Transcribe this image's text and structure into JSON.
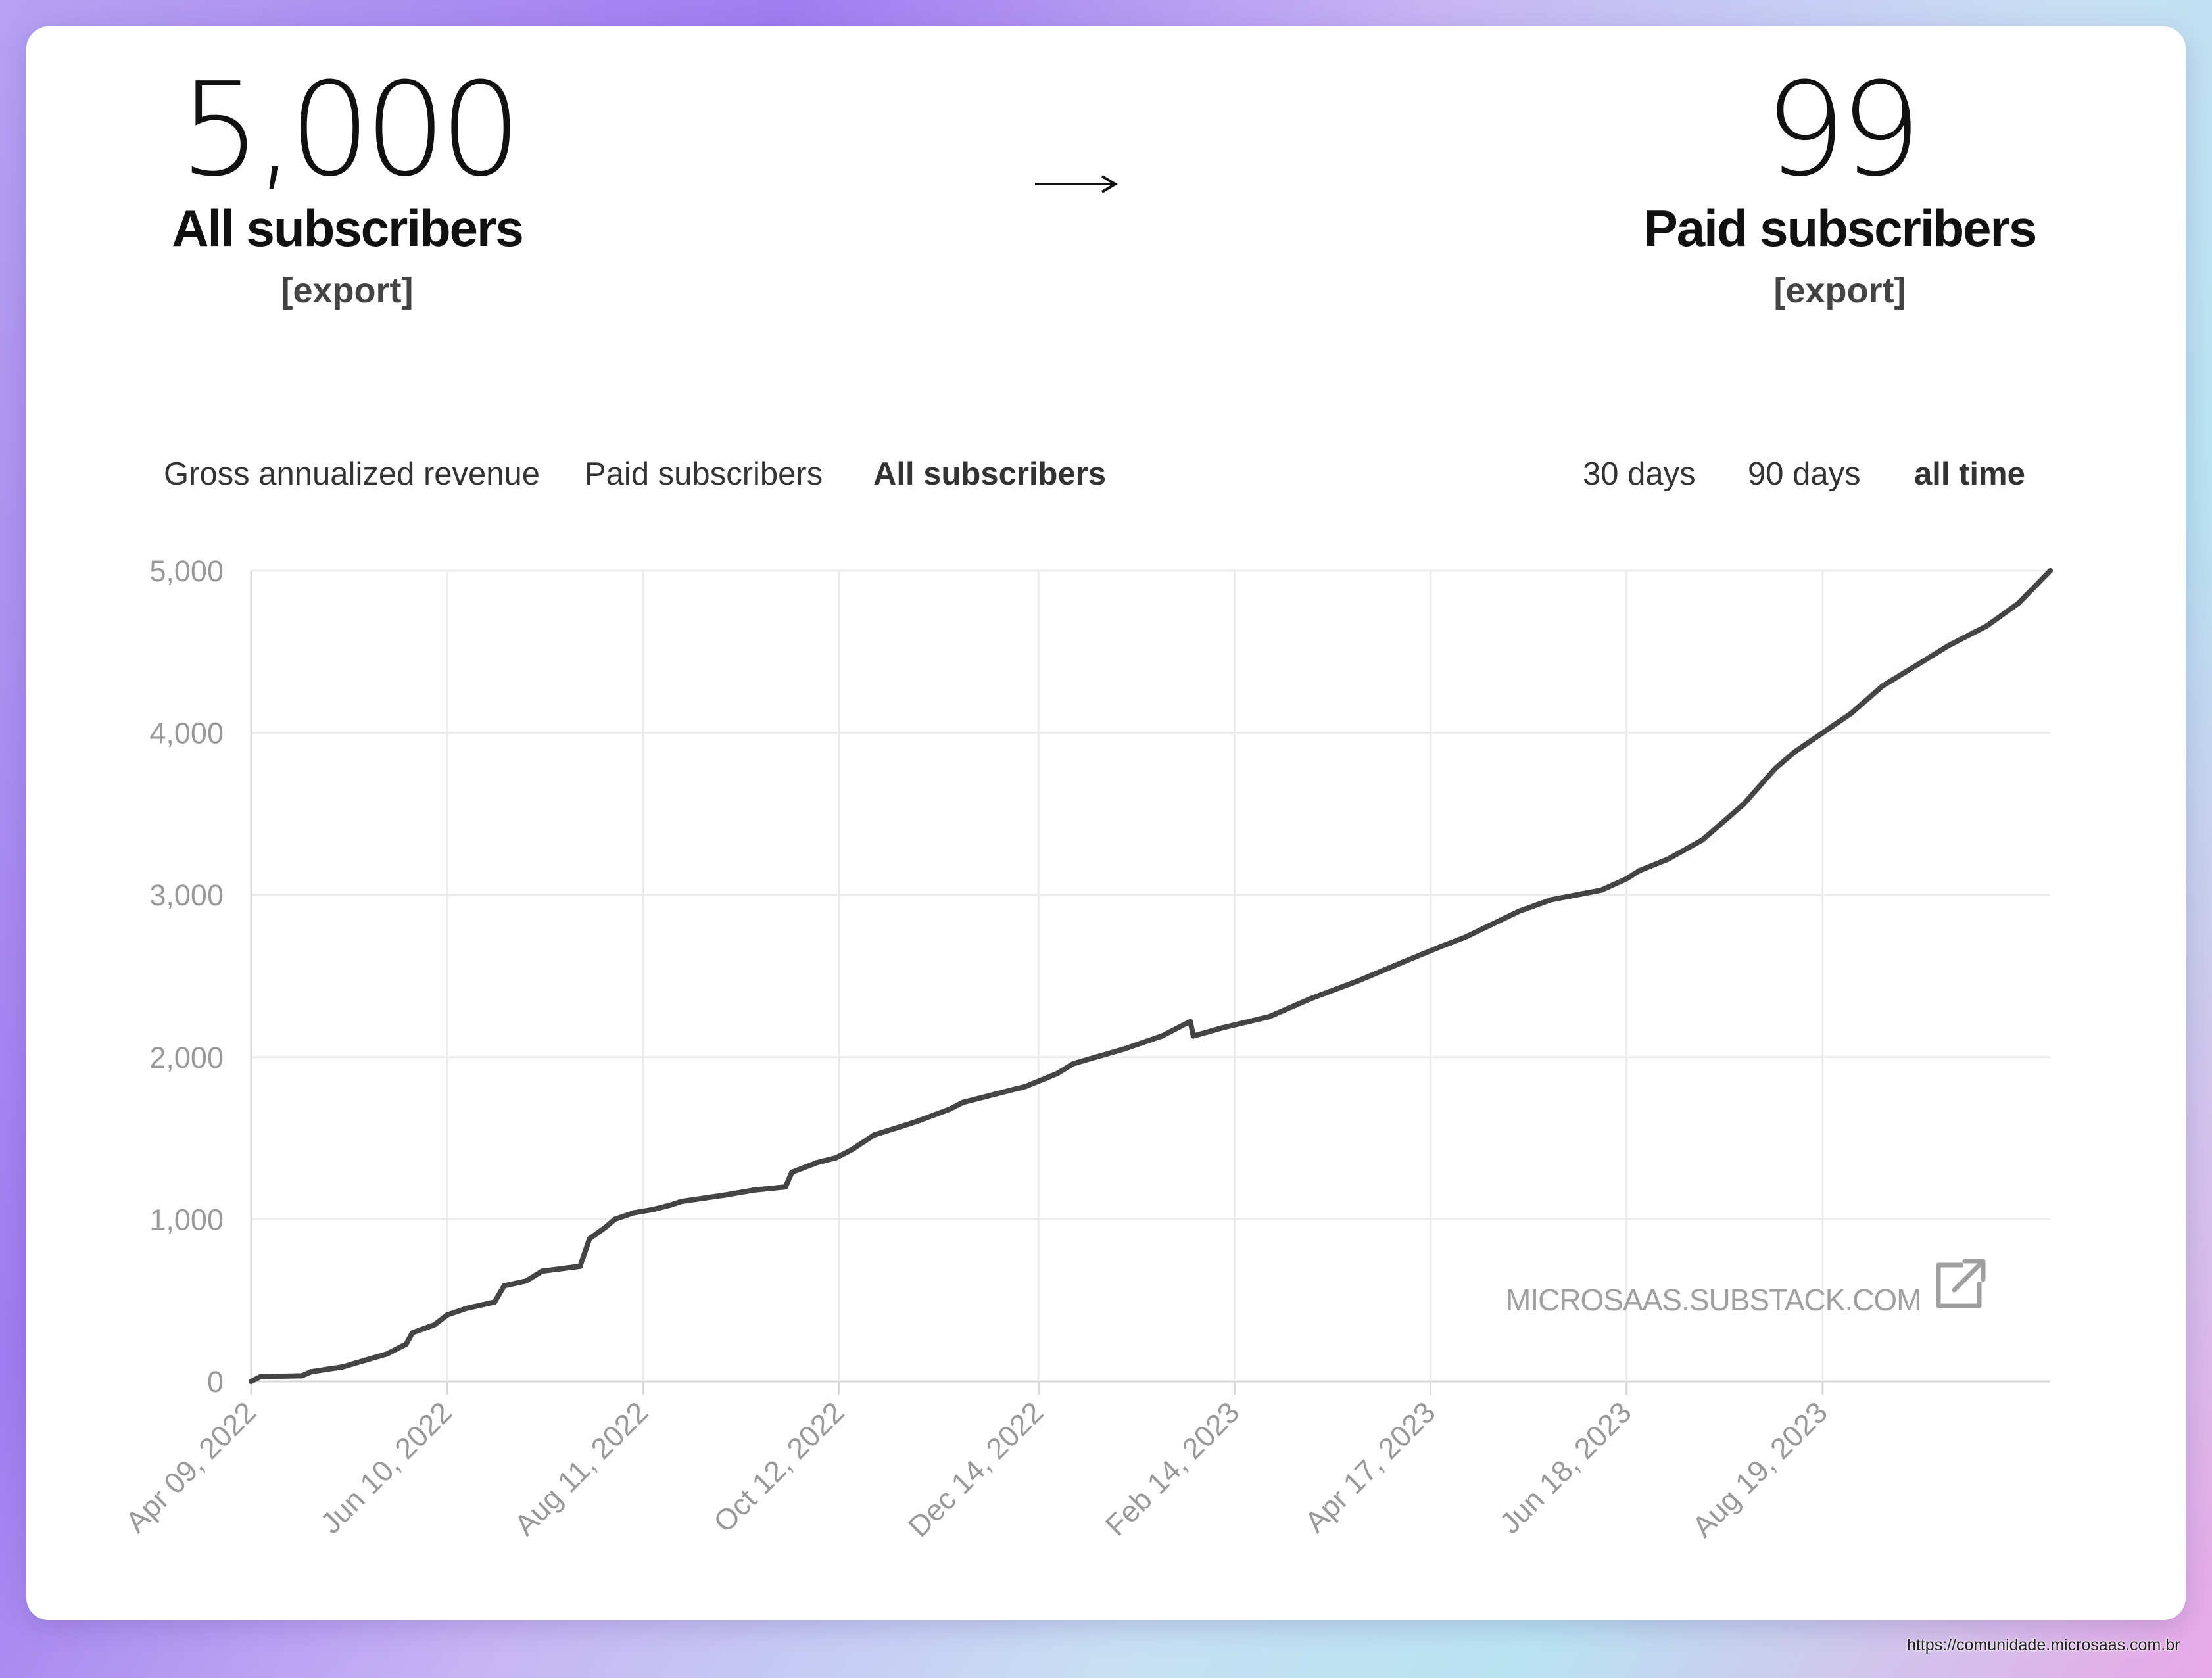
{
  "stats": {
    "all": {
      "value": "5,000",
      "label": "All subscribers",
      "export": "[export]"
    },
    "paid": {
      "value": "99",
      "label": "Paid subscribers",
      "export": "[export]"
    }
  },
  "metric_tabs": [
    {
      "label": "Gross annualized revenue",
      "active": false
    },
    {
      "label": "Paid subscribers",
      "active": false
    },
    {
      "label": "All subscribers",
      "active": true
    }
  ],
  "range_tabs": [
    {
      "label": "30 days",
      "active": false
    },
    {
      "label": "90 days",
      "active": false
    },
    {
      "label": "all time",
      "active": true
    }
  ],
  "watermark": "MICROSAAS.SUBSTACK.COM",
  "credit": "https://comunidade.microsaas.com.br",
  "colors": {
    "line": "#444444",
    "grid": "#ececec",
    "axis_text": "#999999"
  },
  "chart_data": {
    "type": "line",
    "ylim": [
      0,
      5000
    ],
    "yticks": [
      0,
      1000,
      2000,
      3000,
      4000,
      5000
    ],
    "ytick_labels": [
      "0",
      "1,000",
      "2,000",
      "3,000",
      "4,000",
      "5,000"
    ],
    "x_tick_labels": [
      "Apr 09, 2022",
      "Jun 10, 2022",
      "Aug 11, 2022",
      "Oct 12, 2022",
      "Dec 14, 2022",
      "Feb 14, 2023",
      "Apr 17, 2023",
      "Jun 18, 2023",
      "Aug 19, 2023"
    ],
    "x_range": [
      "2022-04-09",
      "2023-10-30"
    ],
    "grid": true,
    "series": [
      {
        "x": [
          "2022-04-09",
          "2022-04-12",
          "2022-04-25",
          "2022-04-28",
          "2022-05-08",
          "2022-05-15",
          "2022-05-22",
          "2022-05-28",
          "2022-05-30",
          "2022-06-06",
          "2022-06-10",
          "2022-06-16",
          "2022-06-25",
          "2022-06-28",
          "2022-07-05",
          "2022-07-10",
          "2022-07-22",
          "2022-07-25",
          "2022-07-30",
          "2022-08-02",
          "2022-08-08",
          "2022-08-14",
          "2022-08-20",
          "2022-08-23",
          "2022-09-06",
          "2022-09-15",
          "2022-09-25",
          "2022-09-27",
          "2022-10-05",
          "2022-10-11",
          "2022-10-16",
          "2022-10-23",
          "2022-11-05",
          "2022-11-16",
          "2022-11-20",
          "2022-12-10",
          "2022-12-20",
          "2022-12-25",
          "2023-01-10",
          "2023-01-22",
          "2023-01-31",
          "2023-02-01",
          "2023-02-10",
          "2023-02-25",
          "2023-03-10",
          "2023-03-25",
          "2023-04-10",
          "2023-04-20",
          "2023-04-28",
          "2023-05-15",
          "2023-05-25",
          "2023-06-10",
          "2023-06-18",
          "2023-06-22",
          "2023-07-01",
          "2023-07-12",
          "2023-07-25",
          "2023-08-04",
          "2023-08-10",
          "2023-08-19",
          "2023-08-28",
          "2023-09-07",
          "2023-09-18",
          "2023-09-28",
          "2023-10-10",
          "2023-10-20",
          "2023-10-30"
        ],
        "y": [
          0,
          30,
          35,
          60,
          90,
          130,
          170,
          230,
          300,
          350,
          410,
          450,
          490,
          590,
          620,
          680,
          710,
          880,
          950,
          1000,
          1040,
          1060,
          1090,
          1110,
          1150,
          1180,
          1200,
          1290,
          1350,
          1380,
          1430,
          1520,
          1600,
          1680,
          1720,
          1820,
          1900,
          1960,
          2050,
          2130,
          2220,
          2130,
          2180,
          2250,
          2360,
          2470,
          2600,
          2680,
          2740,
          2900,
          2970,
          3030,
          3100,
          3150,
          3220,
          3340,
          3560,
          3780,
          3880,
          4000,
          4120,
          4290,
          4420,
          4540,
          4660,
          4800,
          5000
        ]
      }
    ]
  }
}
